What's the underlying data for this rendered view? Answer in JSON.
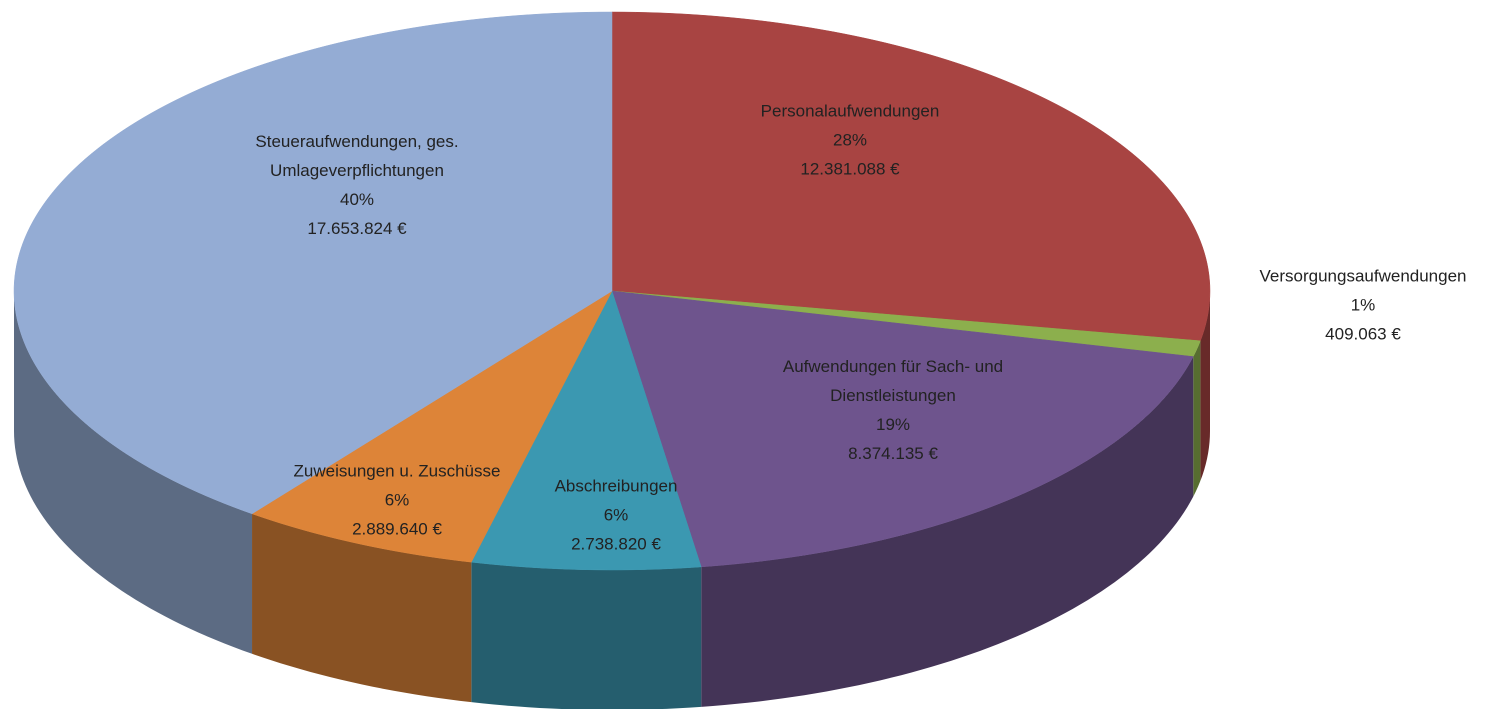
{
  "chart_data": {
    "type": "pie3d",
    "categories": [
      "Personalaufwendungen",
      "Versorgungsaufwendungen",
      "Aufwendungen für Sach- und Dienstleistungen",
      "Abschreibungen",
      "Zuweisungen u. Zuschüsse",
      "Steueraufwendungen, ges. Umlageverpflichtungen"
    ],
    "values": [
      12381088,
      409063,
      8374135,
      2738820,
      2889640,
      17653824
    ],
    "value_labels": [
      "12.381.088 €",
      "409.063 €",
      "8.374.135 €",
      "2.738.820 €",
      "2.889.640 €",
      "17.653.824 €"
    ],
    "percent_labels": [
      "28%",
      "1%",
      "19%",
      "6%",
      "6%",
      "40%"
    ],
    "colors": [
      "#a84442",
      "#8caf4d",
      "#6e548d",
      "#3b98b1",
      "#dd8438",
      "#94acd4"
    ]
  }
}
